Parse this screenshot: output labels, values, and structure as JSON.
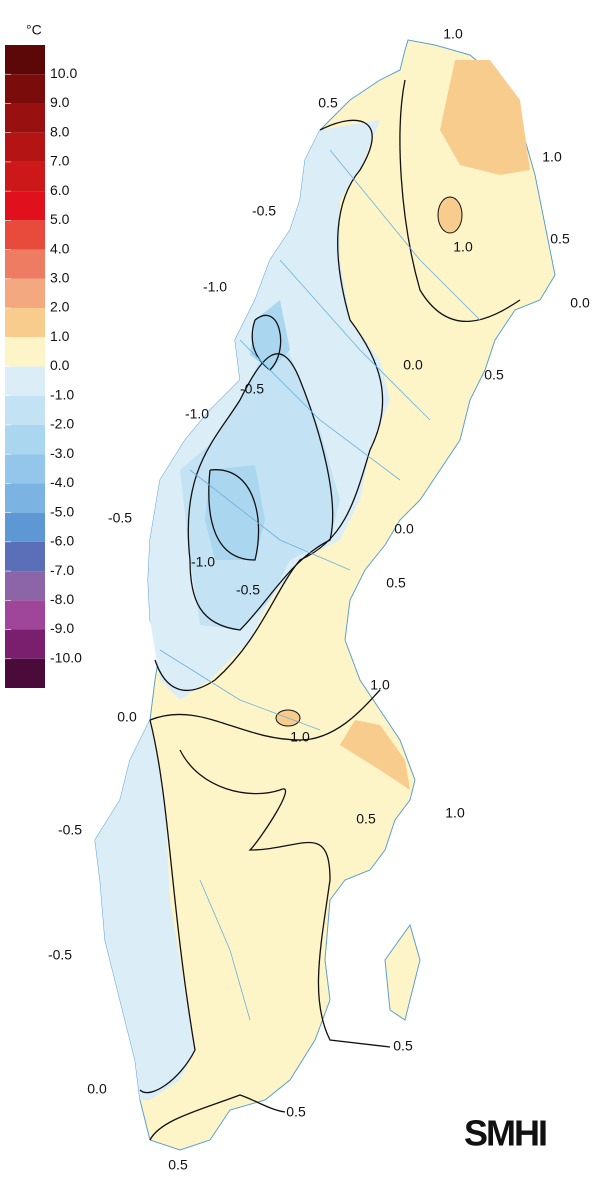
{
  "legend": {
    "unit": "°C",
    "labels": [
      "10.0",
      "9.0",
      "8.0",
      "7.0",
      "6.0",
      "5.0",
      "4.0",
      "3.0",
      "2.0",
      "1.0",
      "0.0",
      "-1.0",
      "-2.0",
      "-3.0",
      "-4.0",
      "-5.0",
      "-6.0",
      "-7.0",
      "-8.0",
      "-9.0",
      "-10.0"
    ],
    "colors": [
      "#5c0808",
      "#7a0c0c",
      "#981010",
      "#b41414",
      "#cc1818",
      "#e0101c",
      "#e84a3c",
      "#ee7c62",
      "#f4a880",
      "#f8cc8c",
      "#fdf4c8",
      "#dbeef8",
      "#c3e2f4",
      "#abd6ef",
      "#93c6ea",
      "#7bb4e2",
      "#5e98d4",
      "#5a6fb8",
      "#8c64a8",
      "#a0469a",
      "#7a1f6e",
      "#4a0a3a"
    ]
  },
  "contour_labels": [
    "1.0",
    "0.5",
    "1.0",
    "1.0",
    "0.5",
    "0.0",
    "-0.5",
    "-1.0",
    "0.0",
    "0.5",
    "-0.5",
    "-1.0",
    "-0.5",
    "0.0",
    "-1.0",
    "-0.5",
    "0.5",
    "1.0",
    "0.0",
    "1.0",
    "1.0",
    "0.5",
    "-0.5",
    "-0.5",
    "0.5",
    "0.0",
    "0.5",
    "0.5"
  ],
  "logo": "SMHI"
}
